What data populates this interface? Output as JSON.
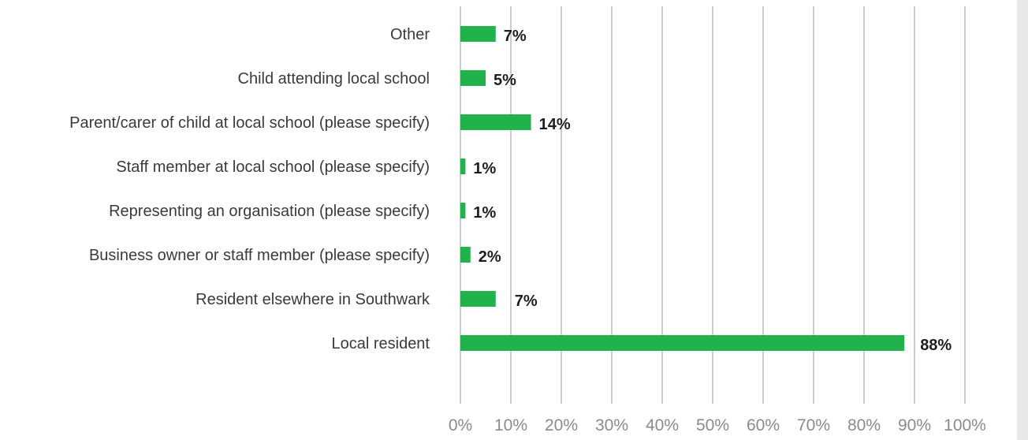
{
  "chart_data": {
    "type": "bar",
    "orientation": "horizontal",
    "categories": [
      "Other",
      "Child attending local school",
      "Parent/carer of child at local school (please specify)",
      "Staff member at local school (please specify)",
      "Representing an organisation (please specify)",
      "Business owner or staff member (please specify)",
      "Resident elsewhere in Southwark",
      "Local resident"
    ],
    "values": [
      7,
      5,
      14,
      1,
      1,
      2,
      7,
      88
    ],
    "value_labels": [
      "7%",
      "5%",
      "14%",
      "1%",
      "1%",
      "2%",
      "7%",
      "88%"
    ],
    "xlim": [
      0,
      100
    ],
    "x_ticks": [
      0,
      10,
      20,
      30,
      40,
      50,
      60,
      70,
      80,
      90,
      100
    ],
    "x_tick_labels": [
      "0%",
      "10%",
      "20%",
      "30%",
      "40%",
      "50%",
      "60%",
      "70%",
      "80%",
      "90%",
      "100%"
    ],
    "grid": "vertical",
    "legend": "none",
    "title": "",
    "xlabel": "",
    "ylabel": "",
    "colors": {
      "bar": "#22b24c",
      "grid": "#9a9a9a",
      "category_text": "#3a3a3a",
      "tick_text": "#8a8a8a",
      "value_text": "#1e1e1e"
    }
  }
}
